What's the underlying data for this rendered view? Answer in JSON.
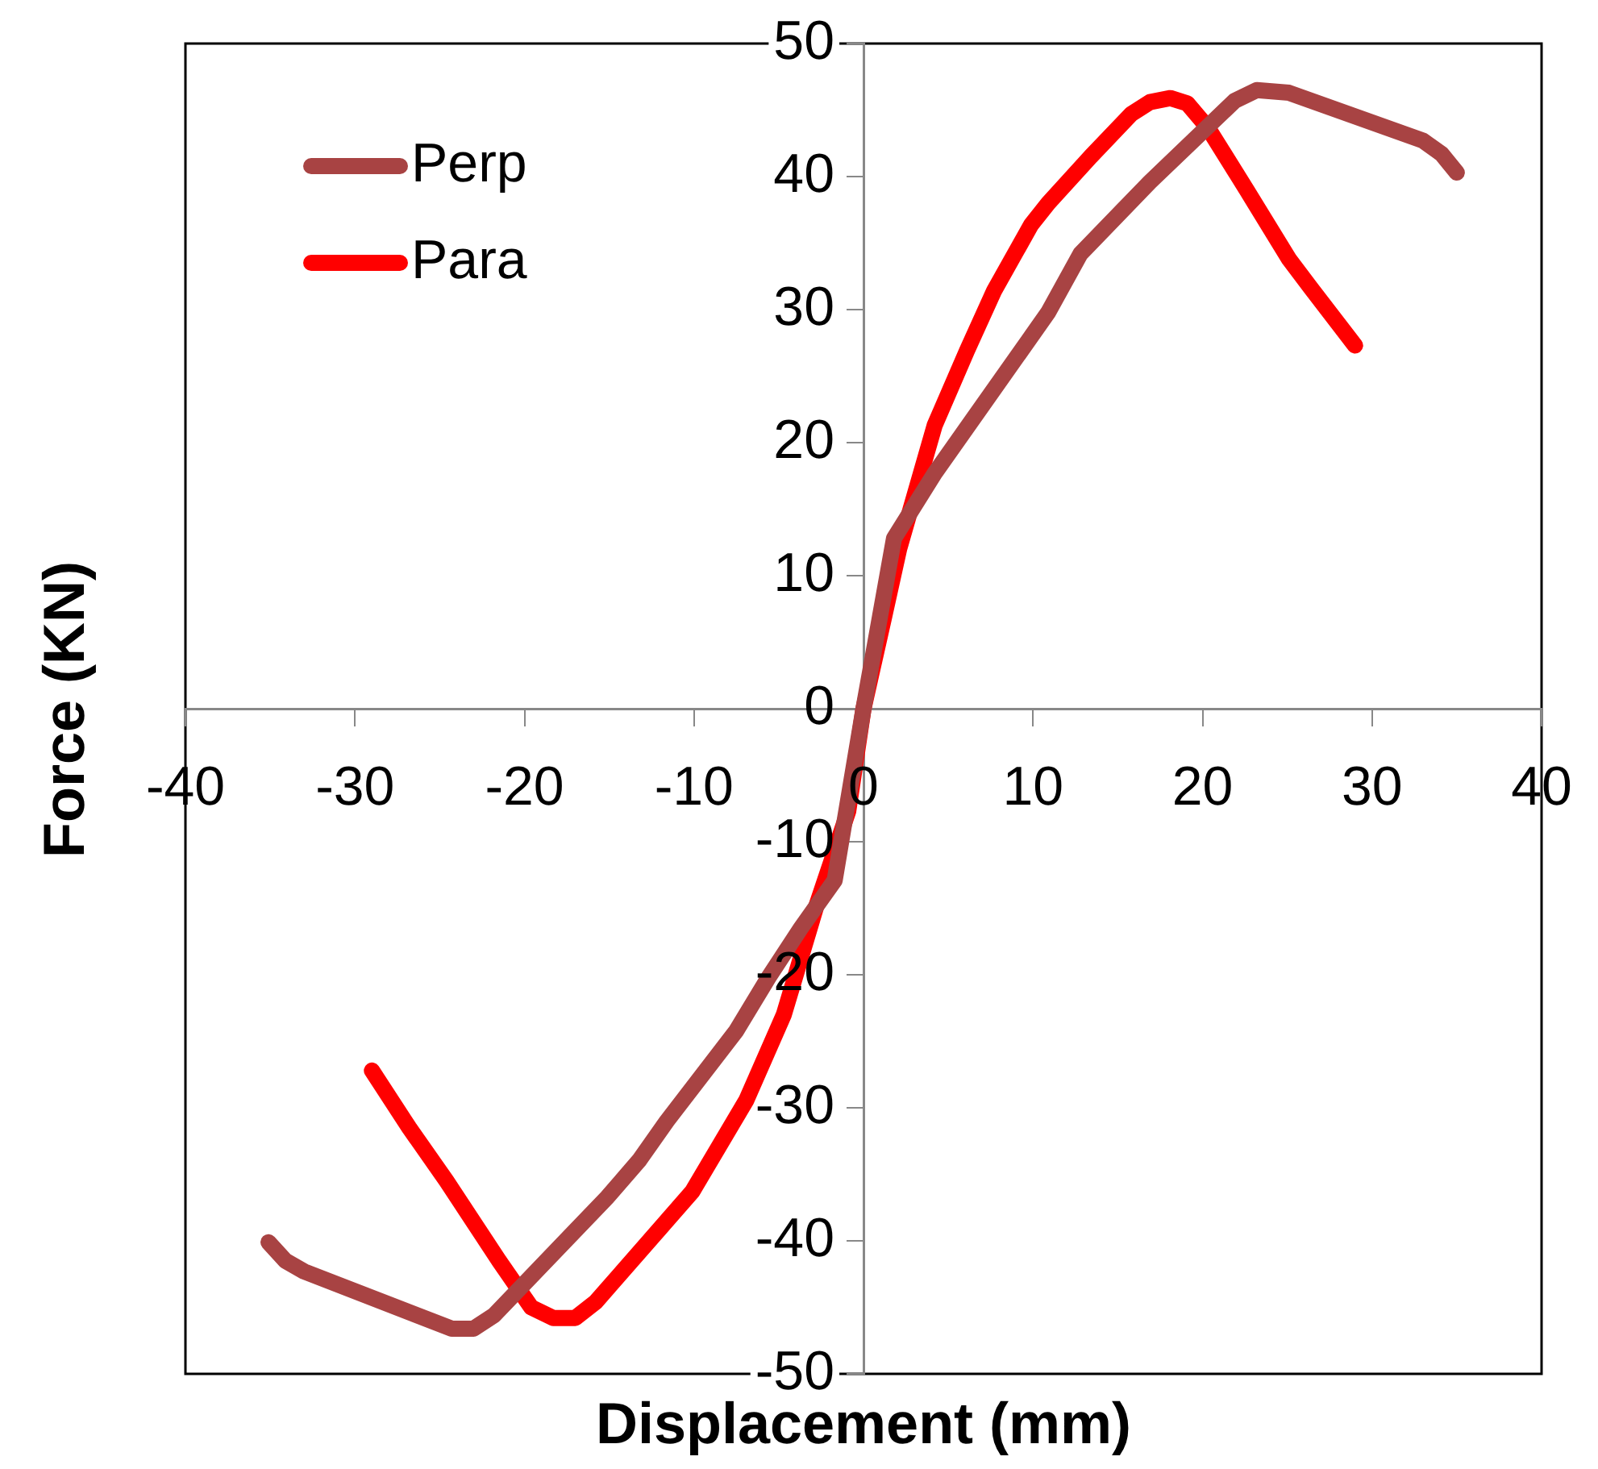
{
  "chart_data": {
    "type": "line",
    "xlabel": "Displacement (mm)",
    "ylabel": "Force (KN)",
    "xlim": [
      -40,
      40
    ],
    "xticks": [
      -40,
      -30,
      -20,
      -10,
      0,
      10,
      20,
      30,
      40
    ],
    "ylim": [
      -50,
      50
    ],
    "yticks": [
      -50,
      -40,
      -30,
      -20,
      -10,
      0,
      10,
      20,
      30,
      40,
      50
    ],
    "grid": false,
    "legend": "top left",
    "marker": "none",
    "line_style": "solid",
    "series": [
      {
        "name": "Perp",
        "color": "#a84343",
        "x": [
          -35.1,
          -34.1,
          -33.0,
          -24.3,
          -23.0,
          -21.8,
          -15.1,
          -13.2,
          -11.6,
          -7.5,
          -5.6,
          -3.7,
          -1.7,
          0,
          1.8,
          4.2,
          10.9,
          12.8,
          16.9,
          21.9,
          23.2,
          25.1,
          33.0,
          34.1,
          35.0
        ],
        "values": [
          -40.1,
          -41.5,
          -42.3,
          -46.6,
          -46.6,
          -45.6,
          -36.7,
          -33.9,
          -31.0,
          -24.2,
          -20.2,
          -16.5,
          -12.9,
          0,
          12.8,
          17.7,
          29.8,
          34.2,
          39.6,
          45.7,
          46.5,
          46.3,
          42.7,
          41.7,
          40.3
        ]
      },
      {
        "name": "Para",
        "color": "#ff0000",
        "x": [
          -29.0,
          -26.8,
          -24.6,
          -21.5,
          -19.6,
          -18.3,
          -17.0,
          -15.8,
          -10.1,
          -6.9,
          -4.7,
          -2.8,
          -0.9,
          0,
          1.2,
          2.1,
          4.2,
          6.1,
          7.7,
          9.9,
          10.9,
          13.4,
          15.8,
          16.9,
          18.1,
          19.1,
          20.3,
          22.6,
          25.1,
          26.4,
          29.0
        ],
        "values": [
          -27.2,
          -31.5,
          -35.5,
          -41.5,
          -45.0,
          -45.8,
          -45.8,
          -44.6,
          -36.3,
          -29.4,
          -23.0,
          -14.9,
          -7.7,
          0,
          6.8,
          12.0,
          21.3,
          26.9,
          31.4,
          36.4,
          38.0,
          41.5,
          44.7,
          45.6,
          45.9,
          45.5,
          43.7,
          39.0,
          33.8,
          31.6,
          27.3
        ]
      }
    ]
  }
}
